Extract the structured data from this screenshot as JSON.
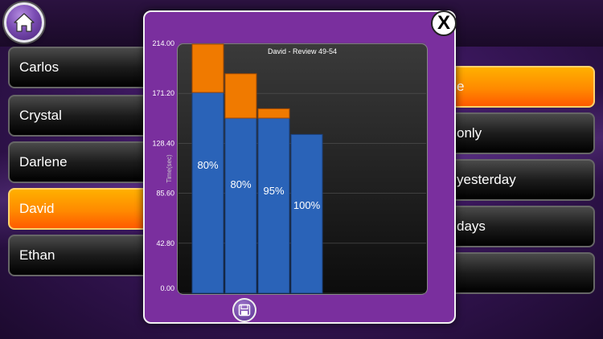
{
  "header": {
    "home_icon": "home-icon"
  },
  "students": [
    {
      "name": "Carlos",
      "selected": false
    },
    {
      "name": "Crystal",
      "selected": false
    },
    {
      "name": "Darlene",
      "selected": false
    },
    {
      "name": "David",
      "selected": true
    },
    {
      "name": "Ethan",
      "selected": false
    }
  ],
  "options": [
    {
      "label": "e",
      "selected": true
    },
    {
      "label": "only",
      "selected": false
    },
    {
      "label": "yesterday",
      "selected": false
    },
    {
      "label": "days",
      "selected": false
    },
    {
      "label": "",
      "selected": false
    }
  ],
  "modal": {
    "close_label": "X",
    "save_icon": "floppy-disk-icon"
  },
  "colors": {
    "selected": "#ff8a00",
    "bar_blue": "#2a63b8",
    "bar_orange": "#f07a00",
    "modal_bg": "#7a2f9e"
  },
  "chart_data": {
    "type": "bar",
    "title": "David - Review 49-54",
    "ylabel": "Time(sec)",
    "xlabel": "",
    "ylim": [
      0,
      214
    ],
    "yticks": [
      "0.00",
      "42.80",
      "85.60",
      "128.40",
      "171.20",
      "214.00"
    ],
    "bars": [
      {
        "blue": 172,
        "orange": 44,
        "label": "80%"
      },
      {
        "blue": 150,
        "orange": 38,
        "label": "80%"
      },
      {
        "blue": 150,
        "orange": 8,
        "label": "95%"
      },
      {
        "blue": 136,
        "orange": 0,
        "label": "100%"
      }
    ]
  }
}
